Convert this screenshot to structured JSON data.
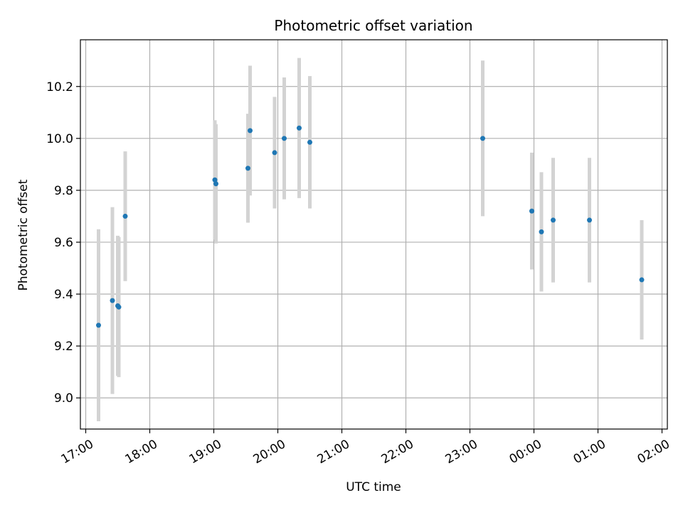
{
  "chart_data": {
    "type": "scatter",
    "title": "Photometric offset variation",
    "xlabel": "UTC time",
    "ylabel": "Photometric offset",
    "x_unit": "UTC time (HH:MM), observations span midnight",
    "xlim": [
      "16:55",
      "02:05"
    ],
    "ylim": [
      8.88,
      10.38
    ],
    "xticks": [
      "17:00",
      "18:00",
      "19:00",
      "20:00",
      "21:00",
      "22:00",
      "23:00",
      "00:00",
      "01:00",
      "02:00"
    ],
    "yticks": [
      9.0,
      9.2,
      9.4,
      9.6,
      9.8,
      10.0,
      10.2
    ],
    "grid": true,
    "marker_color": "#1f77b4",
    "errorbar_color": "#d3d3d3",
    "points": [
      {
        "time": "17:12",
        "y": 9.28,
        "yerr": 0.37
      },
      {
        "time": "17:25",
        "y": 9.375,
        "yerr": 0.36
      },
      {
        "time": "17:30",
        "y": 9.355,
        "yerr": 0.27
      },
      {
        "time": "17:31",
        "y": 9.35,
        "yerr": 0.27
      },
      {
        "time": "17:37",
        "y": 9.7,
        "yerr": 0.25
      },
      {
        "time": "19:01",
        "y": 9.84,
        "yerr": 0.23
      },
      {
        "time": "19:02",
        "y": 9.825,
        "yerr": 0.23
      },
      {
        "time": "19:32",
        "y": 9.885,
        "yerr": 0.21
      },
      {
        "time": "19:34",
        "y": 10.03,
        "yerr": 0.25
      },
      {
        "time": "19:57",
        "y": 9.945,
        "yerr": 0.215
      },
      {
        "time": "20:06",
        "y": 10.0,
        "yerr": 0.235
      },
      {
        "time": "20:20",
        "y": 10.04,
        "yerr": 0.27
      },
      {
        "time": "20:30",
        "y": 9.985,
        "yerr": 0.255
      },
      {
        "time": "23:12",
        "y": 10.0,
        "yerr": 0.3
      },
      {
        "time": "23:58",
        "y": 9.72,
        "yerr": 0.225
      },
      {
        "time": "00:07",
        "y": 9.64,
        "yerr": 0.23
      },
      {
        "time": "00:18",
        "y": 9.685,
        "yerr": 0.24
      },
      {
        "time": "00:52",
        "y": 9.685,
        "yerr": 0.24
      },
      {
        "time": "01:41",
        "y": 9.455,
        "yerr": 0.23
      }
    ]
  }
}
